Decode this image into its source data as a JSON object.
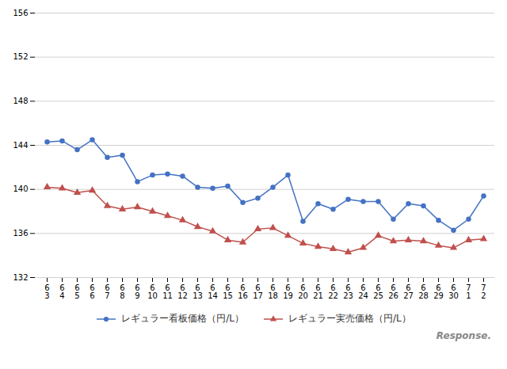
{
  "chart_data": {
    "type": "line",
    "categories": [
      "6\n3",
      "6\n4",
      "6\n5",
      "6\n6",
      "6\n7",
      "6\n8",
      "6\n9",
      "6\n10",
      "6\n11",
      "6\n12",
      "6\n13",
      "6\n14",
      "6\n15",
      "6\n16",
      "6\n17",
      "6\n18",
      "6\n19",
      "6\n20",
      "6\n21",
      "6\n22",
      "6\n23",
      "6\n24",
      "6\n25",
      "6\n26",
      "6\n27",
      "6\n28",
      "6\n29",
      "6\n30",
      "7\n1",
      "7\n2"
    ],
    "series": [
      {
        "name": "レギュラー看板価格（円/L）",
        "color": "#4472C4",
        "marker": "circle",
        "values": [
          144.3,
          144.4,
          143.6,
          144.5,
          142.9,
          143.1,
          140.7,
          141.3,
          141.4,
          141.2,
          140.2,
          140.1,
          140.3,
          138.8,
          139.2,
          140.2,
          141.3,
          137.1,
          138.7,
          138.2,
          139.1,
          138.9,
          138.9,
          137.3,
          138.7,
          138.5,
          137.2,
          136.3,
          137.3,
          139.4
        ]
      },
      {
        "name": "レギュラー実売価格（円/L）",
        "color": "#C0504D",
        "marker": "triangle",
        "values": [
          140.2,
          140.1,
          139.7,
          139.9,
          138.5,
          138.2,
          138.4,
          138.0,
          137.6,
          137.2,
          136.6,
          136.2,
          135.4,
          135.2,
          136.4,
          136.5,
          135.8,
          135.1,
          134.8,
          134.6,
          134.3,
          134.7,
          135.8,
          135.3,
          135.4,
          135.3,
          134.9,
          134.7,
          135.4,
          135.5
        ]
      }
    ],
    "ylim": [
      132,
      156
    ],
    "yticks": [
      132,
      136,
      140,
      144,
      148,
      152,
      156
    ],
    "grid": true,
    "legend": "bottom",
    "annotation": "Response."
  }
}
